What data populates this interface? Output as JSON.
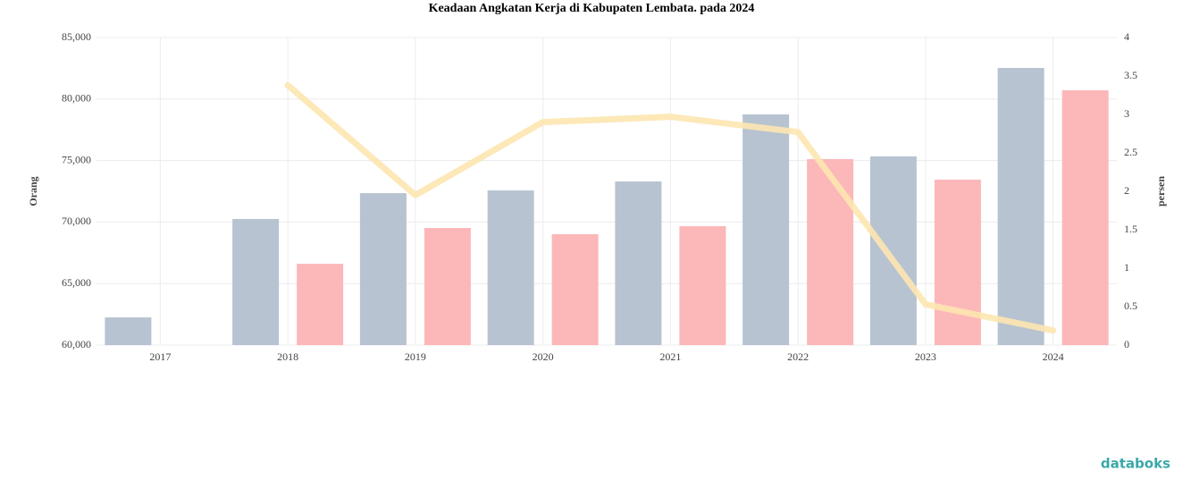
{
  "chart_data": {
    "type": "bar-line",
    "title": "Keadaan Angkatan Kerja di Kabupaten Lembata. pada 2024",
    "categories": [
      "2017",
      "2018",
      "2019",
      "2020",
      "2021",
      "2022",
      "2023",
      "2024"
    ],
    "series": [
      {
        "color": "#b7c3d1",
        "values": [
          62250,
          70250,
          72350,
          72570,
          73300,
          78750,
          75340,
          82530
        ]
      },
      {
        "color": "#fcb7b9",
        "values": [
          null,
          66610,
          69520,
          69010,
          69670,
          75120,
          73450,
          80710
        ]
      },
      {
        "type": "line",
        "axis": "y2",
        "color": "#fde6b0",
        "values": [
          null,
          3.38,
          1.95,
          2.9,
          2.97,
          2.77,
          0.53,
          0.19
        ]
      }
    ],
    "y_label": "Orang",
    "y2_label": "persen",
    "ylim": [
      60000,
      85000
    ],
    "yticks": [
      {
        "value": 60000,
        "label": "60,000"
      },
      {
        "value": 65000,
        "label": "65,000"
      },
      {
        "value": 70000,
        "label": "70,000"
      },
      {
        "value": 75000,
        "label": "75,000"
      },
      {
        "value": 80000,
        "label": "80,000"
      },
      {
        "value": 85000,
        "label": "85,000"
      }
    ],
    "y2lim": [
      0,
      4
    ],
    "y2ticks": [
      0,
      0.5,
      1,
      1.5,
      2,
      2.5,
      3,
      3.5,
      4
    ],
    "grid": true
  },
  "brand": "databoks"
}
